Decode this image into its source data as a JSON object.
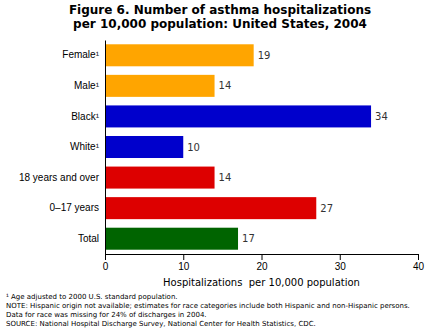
{
  "chart_data": {
    "type": "bar",
    "orientation": "horizontal",
    "title": "Figure 6. Number of asthma hospitalizations\nper 10,000 population: United States, 2004",
    "categories": [
      "Female¹",
      "Male¹",
      "Black¹",
      "White¹",
      "18 years and over",
      "0–17 years",
      "Total"
    ],
    "values": [
      19,
      14,
      34,
      10,
      14,
      27,
      17
    ],
    "colors": [
      "#FFA500",
      "#FFA500",
      "#0000CC",
      "#0000CC",
      "#DD0000",
      "#DD0000",
      "#006400"
    ],
    "xlabel": "Hospitalizations  per 10,000 population",
    "xlim": [
      0,
      40
    ],
    "xticks": [
      0,
      10,
      20,
      30,
      40
    ],
    "data_labels": true,
    "grid": false,
    "annotations": [
      "¹ Age adjusted to 2000 U.S. standard population.",
      "NOTE: Hispanic origin not available; estimates for race categories include both Hispanic and non-Hispanic persons.",
      "Data for race was missing for 24% of discharges in 2004.",
      "SOURCE: National Hospital Discharge Survey, National Center for Health Statistics, CDC."
    ]
  }
}
